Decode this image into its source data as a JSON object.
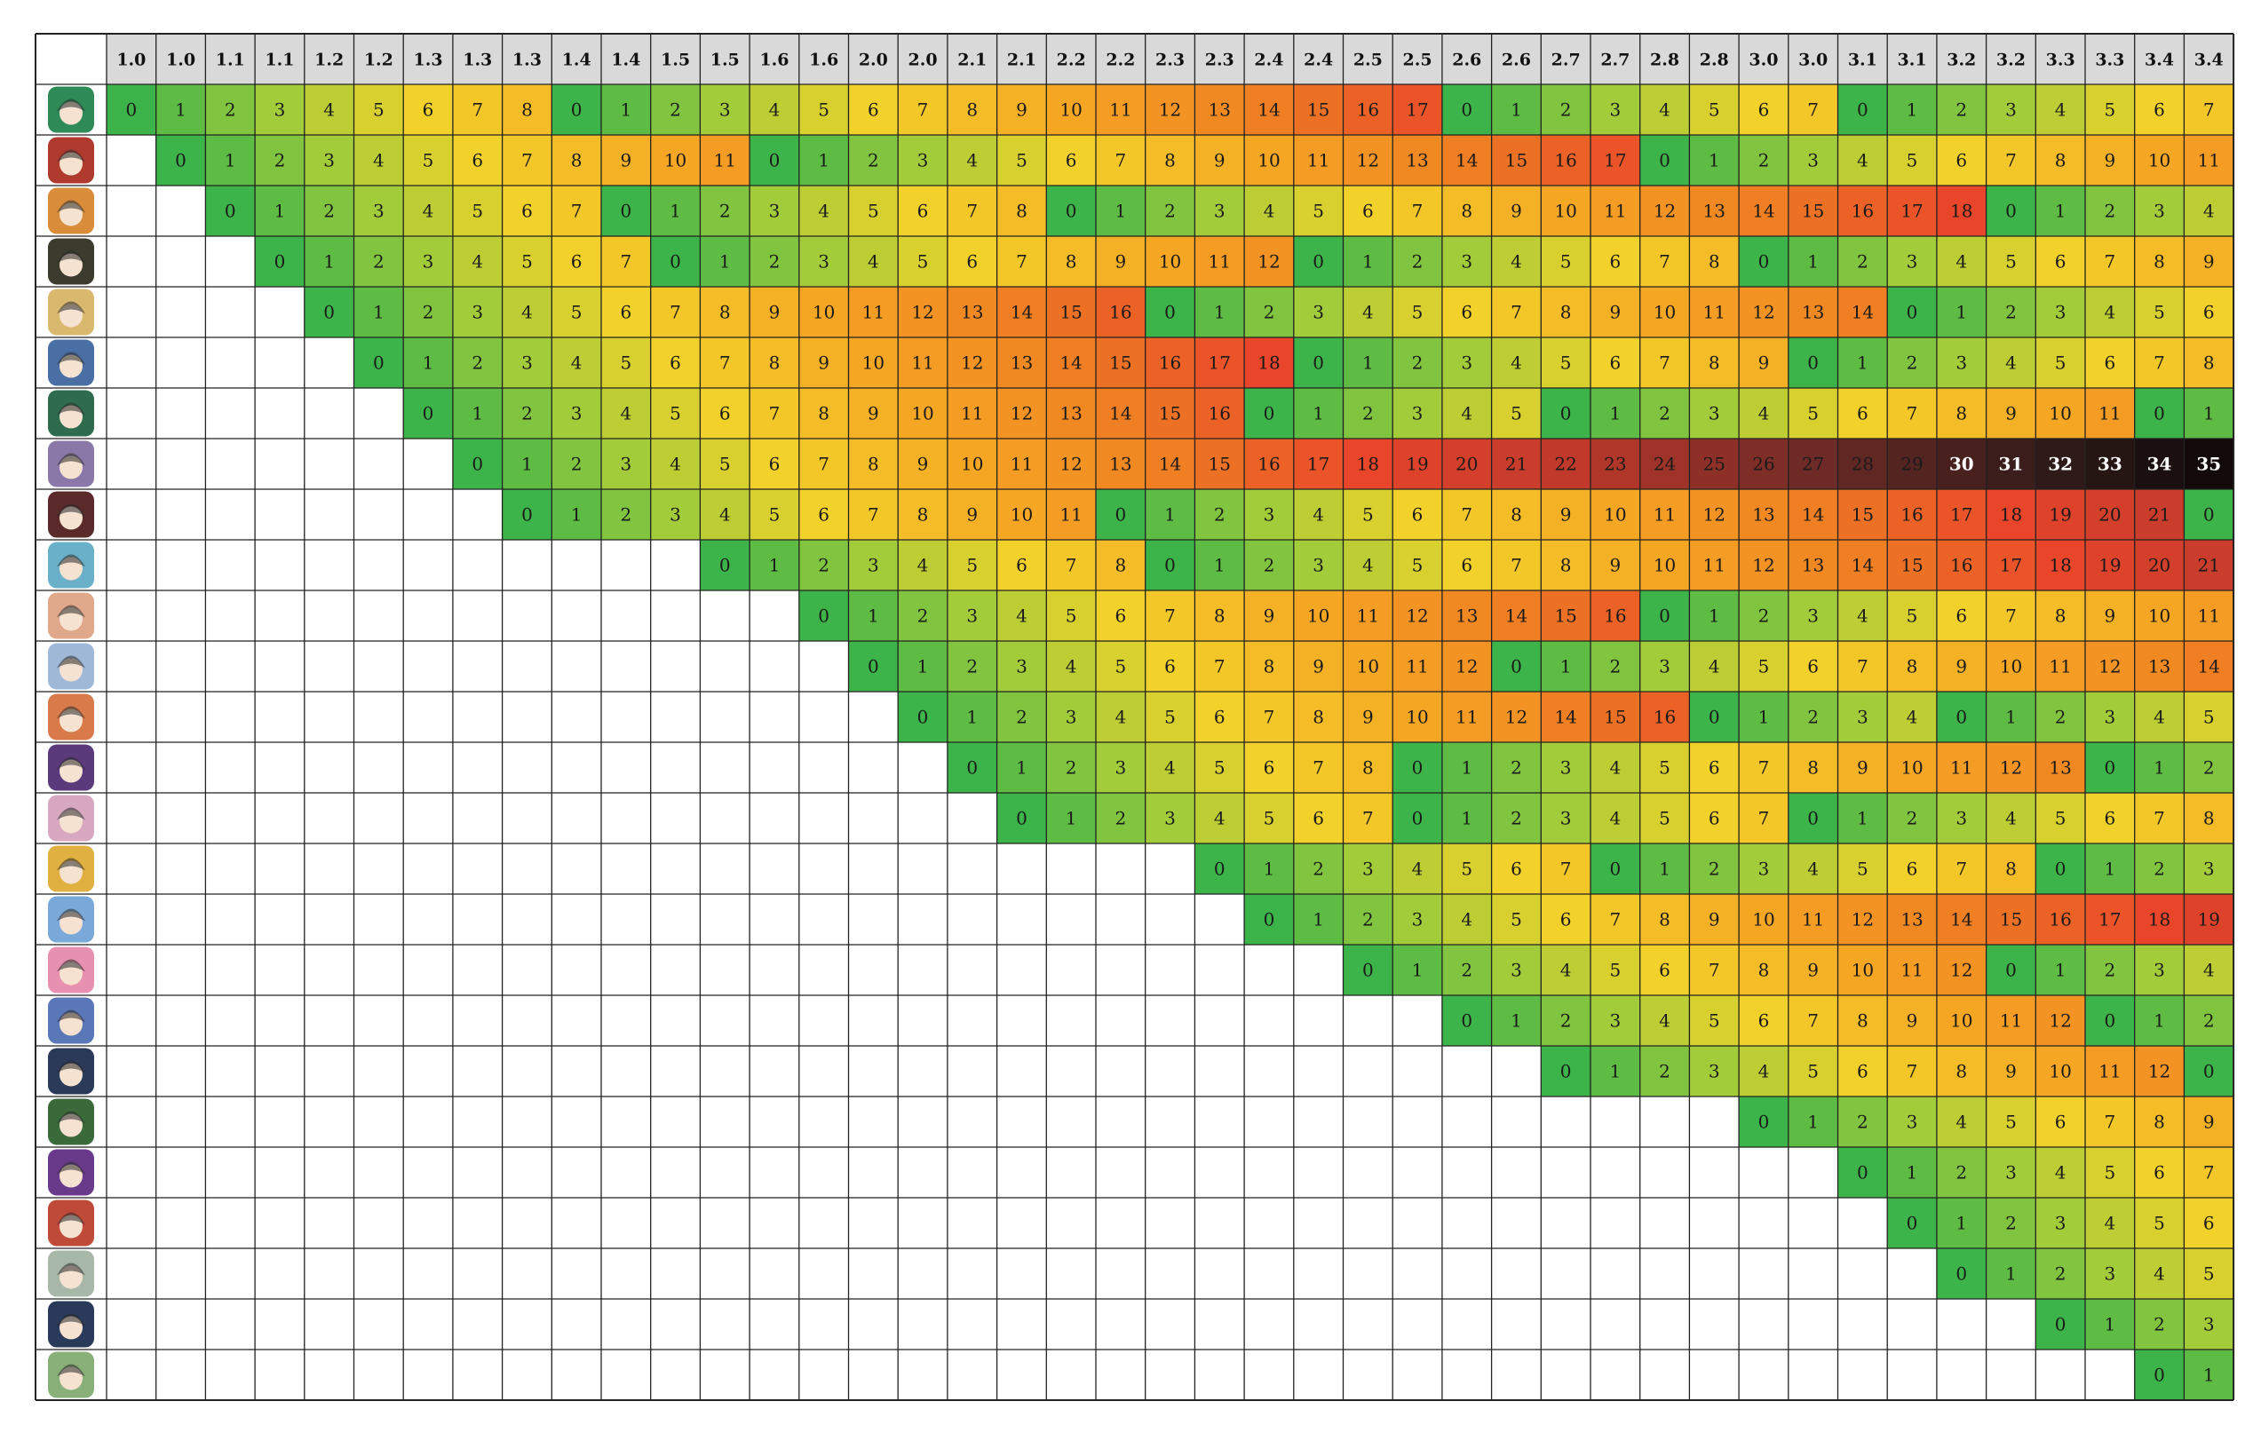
{
  "chart_data": {
    "type": "heatmap",
    "columns": [
      "1.0",
      "1.0",
      "1.1",
      "1.1",
      "1.2",
      "1.2",
      "1.3",
      "1.3",
      "1.3",
      "1.4",
      "1.4",
      "1.5",
      "1.5",
      "1.6",
      "1.6",
      "2.0",
      "2.0",
      "2.1",
      "2.1",
      "2.2",
      "2.2",
      "2.3",
      "2.3",
      "2.4",
      "2.4",
      "2.5",
      "2.5",
      "2.6",
      "2.6",
      "2.7",
      "2.7",
      "2.8",
      "2.8",
      "3.0",
      "3.0",
      "3.1",
      "3.1",
      "3.2",
      "3.2",
      "3.3",
      "3.3",
      "3.4",
      "3.4"
    ],
    "row_icons": [
      "avatar-1-icon",
      "avatar-2-icon",
      "avatar-3-icon",
      "avatar-4-icon",
      "avatar-5-icon",
      "avatar-6-icon",
      "avatar-7-icon",
      "avatar-8-icon",
      "avatar-9-icon",
      "avatar-10-icon",
      "avatar-11-icon",
      "avatar-12-icon",
      "avatar-13-icon",
      "avatar-14-icon",
      "avatar-15-icon",
      "avatar-16-icon",
      "avatar-17-icon",
      "avatar-18-icon",
      "avatar-19-icon",
      "avatar-20-icon",
      "avatar-21-icon",
      "avatar-22-icon",
      "avatar-23-icon",
      "avatar-24-icon",
      "avatar-25-icon",
      "avatar-26-icon"
    ],
    "rows": [
      {
        "start": 0,
        "values": [
          0,
          1,
          2,
          3,
          4,
          5,
          6,
          7,
          8,
          0,
          1,
          2,
          3,
          4,
          5,
          6,
          7,
          8,
          9,
          10,
          11,
          12,
          13,
          14,
          15,
          16,
          17,
          0,
          1,
          2,
          3,
          4,
          5,
          6,
          7,
          0,
          1,
          2,
          3,
          4,
          5,
          6,
          7
        ]
      },
      {
        "start": 1,
        "values": [
          0,
          1,
          2,
          3,
          4,
          5,
          6,
          7,
          8,
          9,
          10,
          11,
          0,
          1,
          2,
          3,
          4,
          5,
          6,
          7,
          8,
          9,
          10,
          11,
          12,
          13,
          14,
          15,
          16,
          17,
          0,
          1,
          2,
          3,
          4,
          5,
          6,
          7,
          8,
          9,
          10,
          11
        ]
      },
      {
        "start": 2,
        "values": [
          0,
          1,
          2,
          3,
          4,
          5,
          6,
          7,
          0,
          1,
          2,
          3,
          4,
          5,
          6,
          7,
          8,
          0,
          1,
          2,
          3,
          4,
          5,
          6,
          7,
          8,
          9,
          10,
          11,
          12,
          13,
          14,
          15,
          16,
          17,
          18,
          0,
          1,
          2,
          3,
          4
        ]
      },
      {
        "start": 3,
        "values": [
          0,
          1,
          2,
          3,
          4,
          5,
          6,
          7,
          0,
          1,
          2,
          3,
          4,
          5,
          6,
          7,
          8,
          9,
          10,
          11,
          12,
          0,
          1,
          2,
          3,
          4,
          5,
          6,
          7,
          8,
          0,
          1,
          2,
          3,
          4,
          5,
          6,
          7,
          8,
          9
        ]
      },
      {
        "start": 4,
        "values": [
          0,
          1,
          2,
          3,
          4,
          5,
          6,
          7,
          8,
          9,
          10,
          11,
          12,
          13,
          14,
          15,
          16,
          0,
          1,
          2,
          3,
          4,
          5,
          6,
          7,
          8,
          9,
          10,
          11,
          12,
          13,
          14,
          0,
          1,
          2,
          3,
          4,
          5,
          6
        ]
      },
      {
        "start": 5,
        "values": [
          0,
          1,
          2,
          3,
          4,
          5,
          6,
          7,
          8,
          9,
          10,
          11,
          12,
          13,
          14,
          15,
          16,
          17,
          18,
          0,
          1,
          2,
          3,
          4,
          5,
          6,
          7,
          8,
          9,
          0,
          1,
          2,
          3,
          4,
          5,
          6,
          7,
          8
        ]
      },
      {
        "start": 6,
        "values": [
          0,
          1,
          2,
          3,
          4,
          5,
          6,
          7,
          8,
          9,
          10,
          11,
          12,
          13,
          14,
          15,
          16,
          0,
          1,
          2,
          3,
          4,
          5,
          0,
          1,
          2,
          3,
          4,
          5,
          6,
          7,
          8,
          9,
          10,
          11,
          0,
          1
        ]
      },
      {
        "start": 7,
        "values": [
          0,
          1,
          2,
          3,
          4,
          5,
          6,
          7,
          8,
          9,
          10,
          11,
          12,
          13,
          14,
          15,
          16,
          17,
          18,
          19,
          20,
          21,
          22,
          23,
          24,
          25,
          26,
          27,
          28,
          29,
          30,
          31,
          32,
          33,
          34,
          35
        ]
      },
      {
        "start": 8,
        "values": [
          0,
          1,
          2,
          3,
          4,
          5,
          6,
          7,
          8,
          9,
          10,
          11,
          0,
          1,
          2,
          3,
          4,
          5,
          6,
          7,
          8,
          9,
          10,
          11,
          12,
          13,
          14,
          15,
          16,
          17,
          18,
          19,
          20,
          21,
          0
        ]
      },
      {
        "start": 12,
        "values": [
          0,
          1,
          2,
          3,
          4,
          5,
          6,
          7,
          8,
          0,
          1,
          2,
          3,
          4,
          5,
          6,
          7,
          8,
          9,
          10,
          11,
          12,
          13,
          14,
          15,
          16,
          17,
          18,
          19,
          20,
          21
        ]
      },
      {
        "start": 14,
        "values": [
          0,
          1,
          2,
          3,
          4,
          5,
          6,
          7,
          8,
          9,
          10,
          11,
          12,
          13,
          14,
          15,
          16,
          0,
          1,
          2,
          3,
          4,
          5,
          6,
          7,
          8,
          9,
          10,
          11
        ]
      },
      {
        "start": 15,
        "values": [
          0,
          1,
          2,
          3,
          4,
          5,
          6,
          7,
          8,
          9,
          10,
          11,
          12,
          0,
          1,
          2,
          3,
          4,
          5,
          6,
          7,
          8,
          9,
          10,
          11,
          12,
          13,
          14
        ]
      },
      {
        "start": 16,
        "values": [
          0,
          1,
          2,
          3,
          4,
          5,
          6,
          7,
          8,
          9,
          10,
          11,
          12,
          14,
          15,
          16,
          0,
          1,
          2,
          3,
          4,
          0,
          1,
          2,
          3,
          4,
          5
        ]
      },
      {
        "start": 17,
        "values": [
          0,
          1,
          2,
          3,
          4,
          5,
          6,
          7,
          8,
          0,
          1,
          2,
          3,
          4,
          5,
          6,
          7,
          8,
          9,
          10,
          11,
          12,
          13,
          0,
          1,
          2
        ]
      },
      {
        "start": 18,
        "values": [
          0,
          1,
          2,
          3,
          4,
          5,
          6,
          7,
          0,
          1,
          2,
          3,
          4,
          5,
          6,
          7,
          0,
          1,
          2,
          3,
          4,
          5,
          6,
          7,
          8
        ]
      },
      {
        "start": 22,
        "values": [
          0,
          1,
          2,
          3,
          4,
          5,
          6,
          7,
          0,
          1,
          2,
          3,
          4,
          5,
          6,
          7,
          8,
          0,
          1,
          2,
          3
        ]
      },
      {
        "start": 23,
        "values": [
          0,
          1,
          2,
          3,
          4,
          5,
          6,
          7,
          8,
          9,
          10,
          11,
          12,
          13,
          14,
          15,
          16,
          17,
          18,
          19
        ]
      },
      {
        "start": 25,
        "values": [
          0,
          1,
          2,
          3,
          4,
          5,
          6,
          7,
          8,
          9,
          10,
          11,
          12,
          0,
          1,
          2,
          3,
          4
        ]
      },
      {
        "start": 27,
        "values": [
          0,
          1,
          2,
          3,
          4,
          5,
          6,
          7,
          8,
          9,
          10,
          11,
          12,
          0,
          1,
          2
        ]
      },
      {
        "start": 29,
        "values": [
          0,
          1,
          2,
          3,
          4,
          5,
          6,
          7,
          8,
          9,
          10,
          11,
          12,
          0
        ]
      },
      {
        "start": 33,
        "values": [
          0,
          1,
          2,
          3,
          4,
          5,
          6,
          7,
          8,
          9
        ]
      },
      {
        "start": 35,
        "values": [
          0,
          1,
          2,
          3,
          4,
          5,
          6,
          7
        ]
      },
      {
        "start": 36,
        "values": [
          0,
          1,
          2,
          3,
          4,
          5,
          6
        ]
      },
      {
        "start": 37,
        "values": [
          0,
          1,
          2,
          3,
          4,
          5
        ]
      },
      {
        "start": 39,
        "values": [
          0,
          1,
          2,
          3
        ]
      },
      {
        "start": 41,
        "values": [
          0,
          1
        ]
      }
    ],
    "color_scale": {
      "stops": [
        {
          "value": 0,
          "color": "#3cb44a"
        },
        {
          "value": 3,
          "color": "#a2cc3a"
        },
        {
          "value": 6,
          "color": "#f2d22a"
        },
        {
          "value": 10,
          "color": "#f5a623"
        },
        {
          "value": 14,
          "color": "#ef7f22"
        },
        {
          "value": 18,
          "color": "#e8452a"
        },
        {
          "value": 22,
          "color": "#c0392b"
        },
        {
          "value": 27,
          "color": "#6e2a26"
        },
        {
          "value": 32,
          "color": "#2e1a18"
        },
        {
          "value": 35,
          "color": "#120a0a"
        }
      ],
      "light_text_from": 30
    },
    "colors": {
      "grid_line": "#222222",
      "header_fill": "#d9d9d9",
      "empty_cell": "#ffffff",
      "dark_text": "#1a1a1a",
      "light_text": "#ffffff"
    }
  }
}
